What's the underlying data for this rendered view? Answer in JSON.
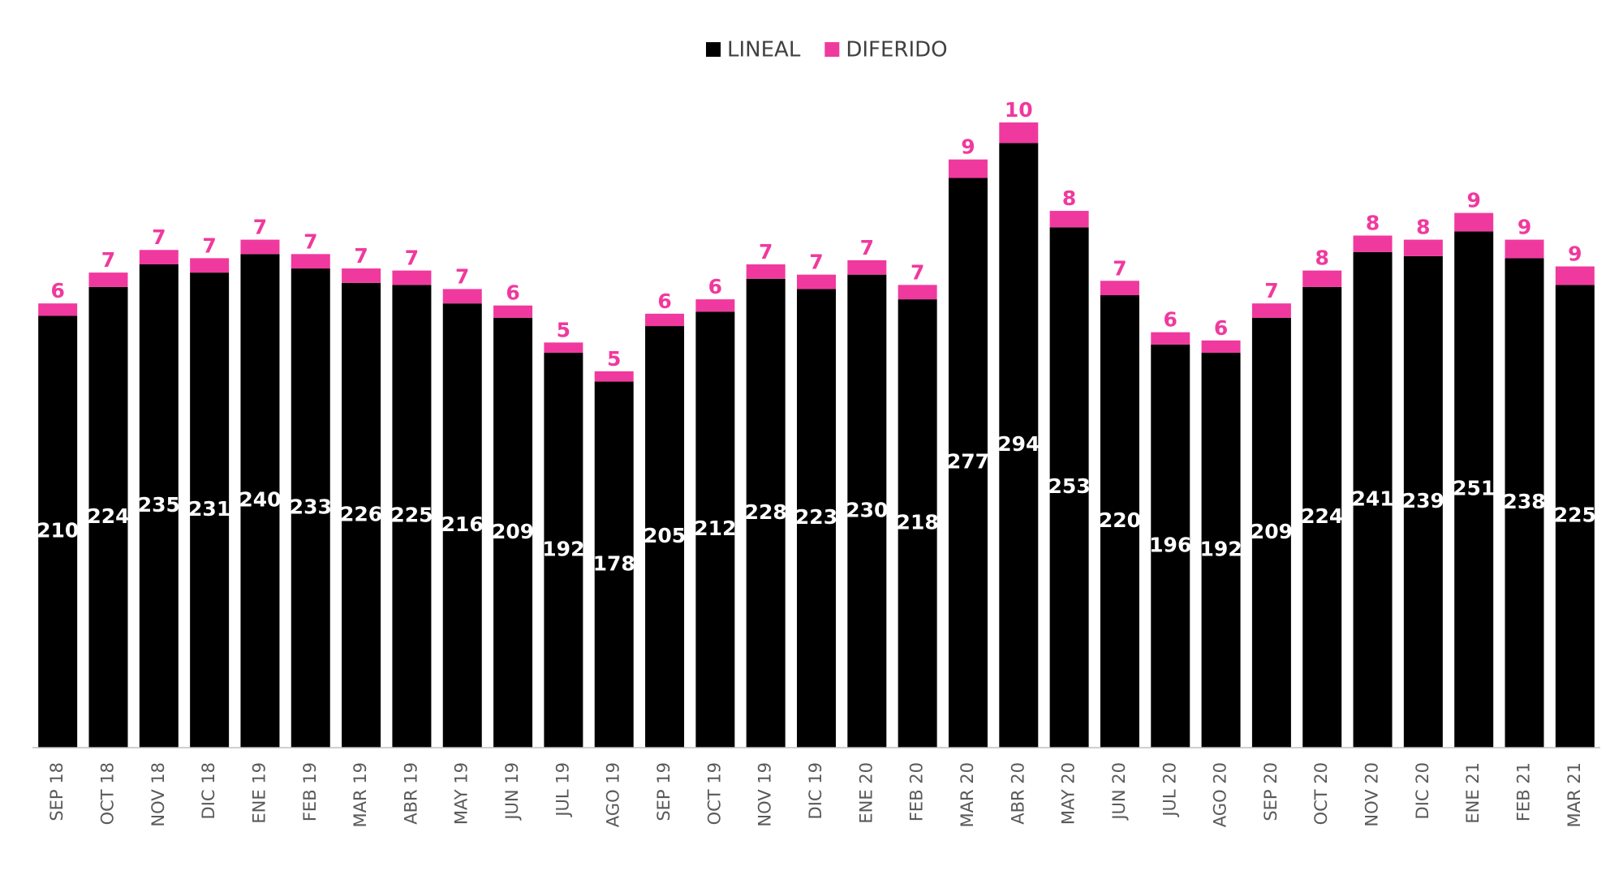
{
  "chart_data": {
    "type": "stacked_bar",
    "categories": [
      "SEP 18",
      "OCT 18",
      "NOV 18",
      "DIC 18",
      "ENE 19",
      "FEB 19",
      "MAR 19",
      "ABR 19",
      "MAY 19",
      "JUN 19",
      "JUL 19",
      "AGO 19",
      "SEP 19",
      "OCT 19",
      "NOV 19",
      "DIC 19",
      "ENE 20",
      "FEB 20",
      "MAR 20",
      "ABR 20",
      "MAY 20",
      "JUN 20",
      "JUL 20",
      "AGO 20",
      "SEP 20",
      "OCT 20",
      "NOV 20",
      "DIC 20",
      "ENE 21",
      "FEB 21",
      "MAR 21"
    ],
    "series": [
      {
        "name": "LINEAL",
        "color": "#000000",
        "values": [
          210,
          224,
          235,
          231,
          240,
          233,
          226,
          225,
          216,
          209,
          192,
          178,
          205,
          212,
          228,
          223,
          230,
          218,
          277,
          294,
          253,
          220,
          196,
          192,
          209,
          224,
          241,
          239,
          251,
          238,
          225
        ]
      },
      {
        "name": "DIFERIDO",
        "color": "#f0399e",
        "values": [
          6,
          7,
          7,
          7,
          7,
          7,
          7,
          7,
          7,
          6,
          5,
          5,
          6,
          6,
          7,
          7,
          7,
          7,
          9,
          10,
          8,
          7,
          6,
          6,
          7,
          8,
          8,
          8,
          9,
          9,
          9
        ]
      }
    ],
    "legend": "top"
  }
}
